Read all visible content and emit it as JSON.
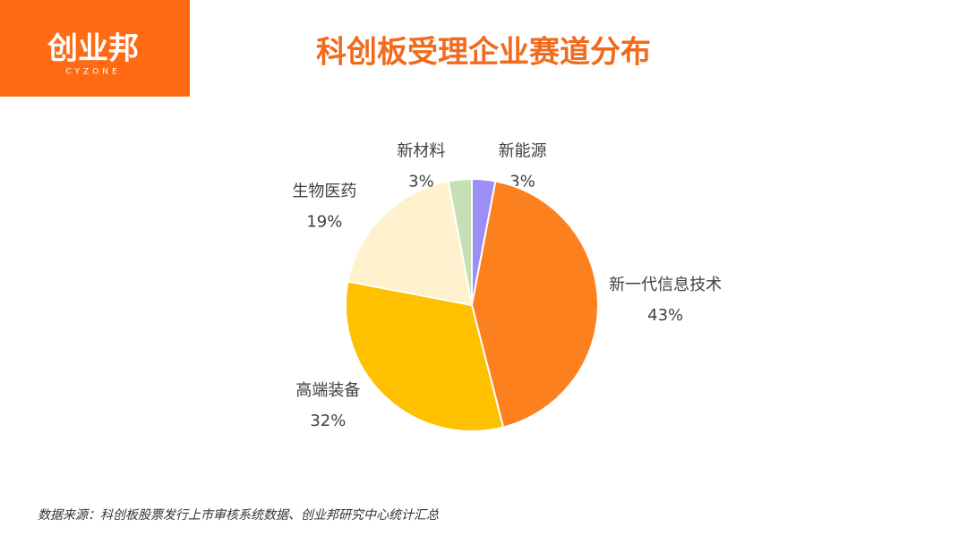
{
  "logo": {
    "name": "创业邦",
    "tagline": "CYZONE"
  },
  "chart_data": {
    "type": "pie",
    "title": "科创板受理企业赛道分布",
    "categories": [
      "新能源",
      "新一代信息技术",
      "高端装备",
      "生物医药",
      "新材料"
    ],
    "values": [
      3,
      43,
      32,
      19,
      3
    ],
    "value_labels": [
      "3%",
      "43%",
      "32%",
      "19%",
      "3%"
    ],
    "colors": [
      "#9b8ff5",
      "#fd801f",
      "#ffc000",
      "#fff1cd",
      "#c6e0b5"
    ],
    "source": "数据来源：科创板股票发行上市审核系统数据、创业邦研究中心统计汇总"
  }
}
